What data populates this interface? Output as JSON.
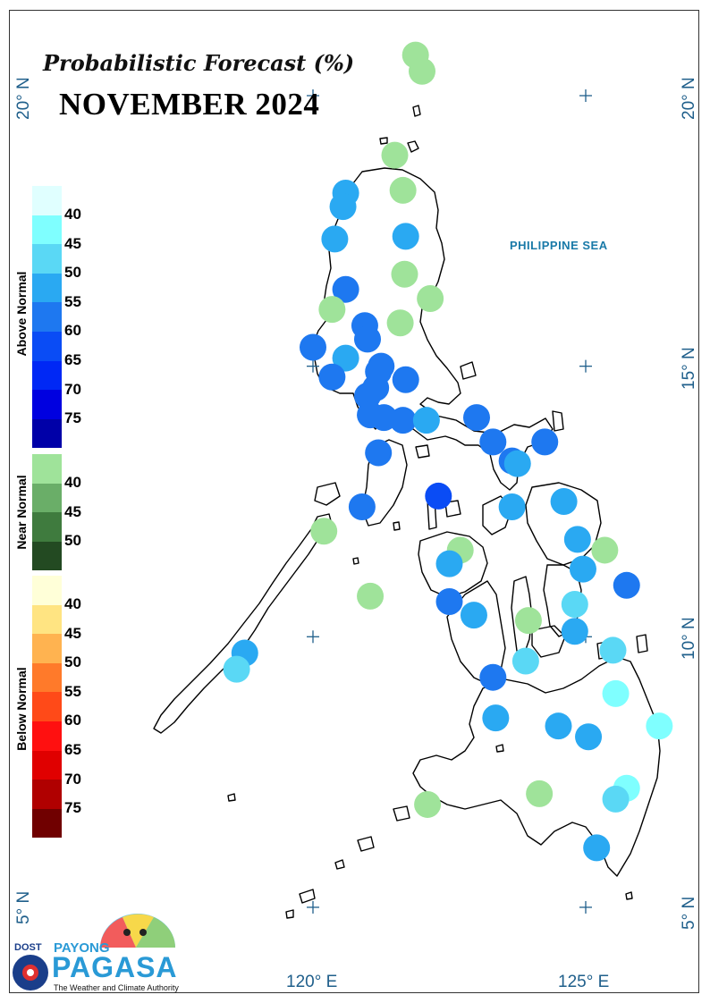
{
  "title": {
    "subtitle": "Probabilistic Forecast (%)",
    "main": "NOVEMBER 2024"
  },
  "sea_label": "PHILIPPINE SEA",
  "axes": {
    "lat_labels": [
      "20° N",
      "15° N",
      "10° N",
      "5° N"
    ],
    "lon_labels": [
      "120° E",
      "125° E"
    ]
  },
  "legend": {
    "above": {
      "label": "Above Normal",
      "colors": [
        "#e0ffff",
        "#7fffff",
        "#5ad8f5",
        "#2aa9f2",
        "#1e78f0",
        "#0a4cf5",
        "#0028f5",
        "#0000e0",
        "#0000a8"
      ],
      "ticks": [
        "40",
        "45",
        "50",
        "55",
        "60",
        "65",
        "70",
        "75"
      ]
    },
    "near": {
      "label": "Near Normal",
      "colors": [
        "#9fe39a",
        "#6aae68",
        "#3f7b3e",
        "#234a22"
      ],
      "ticks": [
        "40",
        "45",
        "50"
      ]
    },
    "below": {
      "label": "Below Normal",
      "colors": [
        "#ffffd8",
        "#ffe482",
        "#ffb350",
        "#ff7a2a",
        "#ff4a18",
        "#ff1010",
        "#e00000",
        "#b00000",
        "#700000"
      ],
      "ticks": [
        "40",
        "45",
        "50",
        "55",
        "60",
        "65",
        "70",
        "75"
      ]
    }
  },
  "logo": {
    "dost": "DOST",
    "payong": "PAYONG",
    "pagasa": "PAGASA",
    "tagline": "The Weather and Climate Authority"
  },
  "stations": [
    {
      "lon": 121.88,
      "lat": 20.75,
      "cat": "near"
    },
    {
      "lon": 122.0,
      "lat": 20.45,
      "cat": "near"
    },
    {
      "lon": 121.5,
      "lat": 18.9,
      "cat": "near"
    },
    {
      "lon": 120.6,
      "lat": 18.2,
      "cat": "above",
      "pct": 50
    },
    {
      "lon": 121.65,
      "lat": 18.25,
      "cat": "near"
    },
    {
      "lon": 120.55,
      "lat": 17.95,
      "cat": "above",
      "pct": 50
    },
    {
      "lon": 120.4,
      "lat": 17.35,
      "cat": "above",
      "pct": 50
    },
    {
      "lon": 121.7,
      "lat": 17.4,
      "cat": "above",
      "pct": 50
    },
    {
      "lon": 121.68,
      "lat": 16.7,
      "cat": "near"
    },
    {
      "lon": 120.6,
      "lat": 16.42,
      "cat": "above",
      "pct": 55
    },
    {
      "lon": 122.15,
      "lat": 16.25,
      "cat": "near"
    },
    {
      "lon": 120.35,
      "lat": 16.05,
      "cat": "near"
    },
    {
      "lon": 121.6,
      "lat": 15.8,
      "cat": "near"
    },
    {
      "lon": 120.95,
      "lat": 15.75,
      "cat": "above",
      "pct": 55
    },
    {
      "lon": 121.0,
      "lat": 15.5,
      "cat": "above",
      "pct": 55
    },
    {
      "lon": 120.0,
      "lat": 15.35,
      "cat": "above",
      "pct": 55
    },
    {
      "lon": 120.6,
      "lat": 15.15,
      "cat": "above",
      "pct": 50
    },
    {
      "lon": 121.25,
      "lat": 15.0,
      "cat": "above",
      "pct": 55
    },
    {
      "lon": 121.2,
      "lat": 14.9,
      "cat": "above",
      "pct": 55
    },
    {
      "lon": 120.35,
      "lat": 14.8,
      "cat": "above",
      "pct": 55
    },
    {
      "lon": 121.7,
      "lat": 14.75,
      "cat": "above",
      "pct": 55
    },
    {
      "lon": 121.15,
      "lat": 14.6,
      "cat": "above",
      "pct": 55
    },
    {
      "lon": 121.0,
      "lat": 14.45,
      "cat": "above",
      "pct": 55
    },
    {
      "lon": 121.05,
      "lat": 14.1,
      "cat": "above",
      "pct": 55
    },
    {
      "lon": 121.3,
      "lat": 14.05,
      "cat": "above",
      "pct": 55
    },
    {
      "lon": 121.65,
      "lat": 14.0,
      "cat": "above",
      "pct": 55
    },
    {
      "lon": 122.08,
      "lat": 14.0,
      "cat": "above",
      "pct": 50
    },
    {
      "lon": 123.0,
      "lat": 14.05,
      "cat": "above",
      "pct": 55
    },
    {
      "lon": 121.2,
      "lat": 13.4,
      "cat": "above",
      "pct": 55
    },
    {
      "lon": 123.3,
      "lat": 13.6,
      "cat": "above",
      "pct": 55
    },
    {
      "lon": 124.25,
      "lat": 13.6,
      "cat": "above",
      "pct": 55
    },
    {
      "lon": 123.65,
      "lat": 13.25,
      "cat": "above",
      "pct": 55
    },
    {
      "lon": 123.75,
      "lat": 13.2,
      "cat": "above",
      "pct": 50
    },
    {
      "lon": 122.3,
      "lat": 12.6,
      "cat": "above",
      "pct": 60
    },
    {
      "lon": 124.6,
      "lat": 12.5,
      "cat": "above",
      "pct": 50
    },
    {
      "lon": 123.65,
      "lat": 12.4,
      "cat": "above",
      "pct": 50
    },
    {
      "lon": 120.9,
      "lat": 12.4,
      "cat": "above",
      "pct": 55
    },
    {
      "lon": 120.2,
      "lat": 11.95,
      "cat": "near"
    },
    {
      "lon": 124.85,
      "lat": 11.8,
      "cat": "above",
      "pct": 50
    },
    {
      "lon": 122.7,
      "lat": 11.6,
      "cat": "near"
    },
    {
      "lon": 122.5,
      "lat": 11.35,
      "cat": "above",
      "pct": 50
    },
    {
      "lon": 125.35,
      "lat": 11.6,
      "cat": "near"
    },
    {
      "lon": 124.95,
      "lat": 11.25,
      "cat": "above",
      "pct": 50
    },
    {
      "lon": 125.75,
      "lat": 10.95,
      "cat": "above",
      "pct": 55
    },
    {
      "lon": 121.05,
      "lat": 10.75,
      "cat": "near"
    },
    {
      "lon": 122.5,
      "lat": 10.65,
      "cat": "above",
      "pct": 55
    },
    {
      "lon": 124.8,
      "lat": 10.6,
      "cat": "above",
      "pct": 45
    },
    {
      "lon": 122.95,
      "lat": 10.4,
      "cat": "above",
      "pct": 50
    },
    {
      "lon": 123.95,
      "lat": 10.3,
      "cat": "near"
    },
    {
      "lon": 124.8,
      "lat": 10.1,
      "cat": "above",
      "pct": 50
    },
    {
      "lon": 118.75,
      "lat": 9.7,
      "cat": "above",
      "pct": 50
    },
    {
      "lon": 125.5,
      "lat": 9.75,
      "cat": "above",
      "pct": 45
    },
    {
      "lon": 123.9,
      "lat": 9.55,
      "cat": "above",
      "pct": 45
    },
    {
      "lon": 118.6,
      "lat": 9.4,
      "cat": "above",
      "pct": 45
    },
    {
      "lon": 123.3,
      "lat": 9.25,
      "cat": "above",
      "pct": 55
    },
    {
      "lon": 125.55,
      "lat": 8.95,
      "cat": "above",
      "pct": 40
    },
    {
      "lon": 123.35,
      "lat": 8.5,
      "cat": "above",
      "pct": 50
    },
    {
      "lon": 124.5,
      "lat": 8.35,
      "cat": "above",
      "pct": 50
    },
    {
      "lon": 126.35,
      "lat": 8.35,
      "cat": "above",
      "pct": 40
    },
    {
      "lon": 125.05,
      "lat": 8.15,
      "cat": "above",
      "pct": 50
    },
    {
      "lon": 124.15,
      "lat": 7.1,
      "cat": "near"
    },
    {
      "lon": 125.75,
      "lat": 7.2,
      "cat": "above",
      "pct": 40
    },
    {
      "lon": 125.55,
      "lat": 7.0,
      "cat": "above",
      "pct": 45
    },
    {
      "lon": 122.1,
      "lat": 6.9,
      "cat": "near"
    },
    {
      "lon": 125.2,
      "lat": 6.1,
      "cat": "above",
      "pct": 50
    }
  ]
}
